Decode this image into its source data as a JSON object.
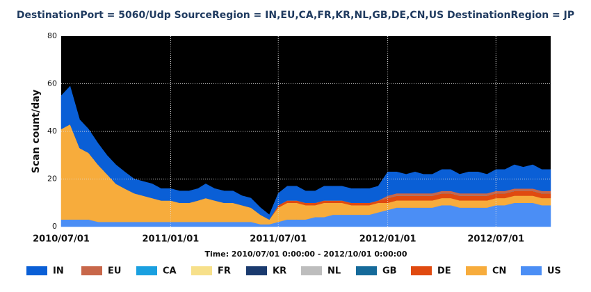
{
  "chart_data": {
    "type": "stacked-area",
    "title": "DestinationPort = 5060/Udp SourceRegion = IN,EU,CA,FR,KR,NL,GB,DE,CN,US DestinationRegion = JP",
    "y_label": "Scan count/day",
    "x_label": "Time: 2010/07/01 0:00:00 - 2012/10/01 0:00:00",
    "x": [
      "2010/07/01",
      "2010/07/16",
      "2010/08/01",
      "2010/08/16",
      "2010/09/01",
      "2010/09/16",
      "2010/10/01",
      "2010/10/16",
      "2010/11/01",
      "2010/11/16",
      "2010/12/01",
      "2010/12/16",
      "2011/01/01",
      "2011/01/16",
      "2011/02/01",
      "2011/02/16",
      "2011/03/01",
      "2011/03/16",
      "2011/04/01",
      "2011/04/16",
      "2011/05/01",
      "2011/05/16",
      "2011/06/01",
      "2011/06/16",
      "2011/07/01",
      "2011/07/16",
      "2011/08/01",
      "2011/08/16",
      "2011/09/01",
      "2011/09/16",
      "2011/10/01",
      "2011/10/16",
      "2011/11/01",
      "2011/11/16",
      "2011/12/01",
      "2011/12/16",
      "2012/01/01",
      "2012/01/16",
      "2012/02/01",
      "2012/02/16",
      "2012/03/01",
      "2012/03/16",
      "2012/04/01",
      "2012/04/16",
      "2012/05/01",
      "2012/05/16",
      "2012/06/01",
      "2012/06/16",
      "2012/07/01",
      "2012/07/16",
      "2012/08/01",
      "2012/08/16",
      "2012/09/01",
      "2012/09/16",
      "2012/10/01"
    ],
    "series": [
      {
        "name": "IN",
        "color": "#0a5fd6",
        "values": [
          14,
          16,
          12,
          10,
          9,
          8,
          8,
          7,
          6,
          6,
          6,
          5,
          5,
          5,
          5,
          5,
          6,
          5,
          5,
          5,
          4,
          4,
          3,
          2,
          5,
          6,
          6,
          5,
          5,
          6,
          6,
          6,
          6,
          6,
          6,
          6,
          10,
          9,
          8,
          9,
          8,
          8,
          9,
          9,
          8,
          9,
          9,
          8,
          9,
          9,
          10,
          9,
          10,
          9,
          9
        ]
      },
      {
        "name": "EU",
        "color": "#c8674a",
        "values": [
          0,
          0,
          0,
          0,
          0,
          0,
          0,
          0,
          0,
          0,
          0,
          0,
          0,
          0,
          0,
          0,
          0,
          0,
          0,
          0,
          0,
          0,
          0,
          0,
          0,
          0,
          0,
          0,
          0,
          0,
          0,
          0,
          0,
          0,
          0,
          0,
          1,
          1,
          1,
          1,
          1,
          1,
          1,
          1,
          1,
          1,
          1,
          1,
          1,
          1,
          1,
          1,
          1,
          1,
          1
        ]
      },
      {
        "name": "CA",
        "color": "#1aa0e0",
        "values": [
          0,
          0,
          0,
          0,
          0,
          0,
          0,
          0,
          0,
          0,
          0,
          0,
          0,
          0,
          0,
          0,
          0,
          0,
          0,
          0,
          0,
          0,
          0,
          0,
          0,
          0,
          0,
          0,
          0,
          0,
          0,
          0,
          0,
          0,
          0,
          0,
          0,
          0,
          0,
          0,
          0,
          0,
          0,
          0,
          0,
          0,
          0,
          0,
          0,
          0,
          0,
          0,
          0,
          0,
          0
        ]
      },
      {
        "name": "FR",
        "color": "#f7e08a",
        "values": [
          0,
          0,
          0,
          0,
          0,
          0,
          0,
          0,
          0,
          0,
          0,
          0,
          0,
          0,
          0,
          0,
          0,
          0,
          0,
          0,
          0,
          0,
          0,
          0,
          0,
          0,
          0,
          0,
          0,
          0,
          0,
          0,
          0,
          0,
          0,
          0,
          0,
          0,
          0,
          0,
          0,
          0,
          0,
          0,
          0,
          0,
          0,
          0,
          0,
          0,
          0,
          0,
          0,
          0,
          0
        ]
      },
      {
        "name": "KR",
        "color": "#1a3a6e",
        "values": [
          0,
          0,
          0,
          0,
          0,
          0,
          0,
          0,
          0,
          0,
          0,
          0,
          0,
          0,
          0,
          0,
          0,
          0,
          0,
          0,
          0,
          0,
          0,
          0,
          0,
          0,
          0,
          0,
          0,
          0,
          0,
          0,
          0,
          0,
          0,
          0,
          0,
          0,
          0,
          0,
          0,
          0,
          0,
          0,
          0,
          0,
          0,
          0,
          0,
          0,
          0,
          0,
          0,
          0,
          0
        ]
      },
      {
        "name": "NL",
        "color": "#bdbdbd",
        "values": [
          0,
          0,
          0,
          0,
          0,
          0,
          0,
          0,
          0,
          0,
          0,
          0,
          0,
          0,
          0,
          0,
          0,
          0,
          0,
          0,
          0,
          0,
          0,
          0,
          0,
          0,
          0,
          0,
          0,
          0,
          0,
          0,
          0,
          0,
          0,
          0,
          0,
          0,
          0,
          0,
          0,
          0,
          0,
          0,
          0,
          0,
          0,
          0,
          0,
          0,
          0,
          0,
          0,
          0,
          0
        ]
      },
      {
        "name": "GB",
        "color": "#156a9a",
        "values": [
          0,
          0,
          0,
          0,
          0,
          0,
          0,
          0,
          0,
          0,
          0,
          0,
          0,
          0,
          0,
          0,
          0,
          0,
          0,
          0,
          0,
          0,
          0,
          0,
          0,
          0,
          0,
          0,
          0,
          0,
          0,
          0,
          0,
          0,
          0,
          0,
          0,
          0,
          0,
          0,
          0,
          0,
          0,
          0,
          0,
          0,
          0,
          0,
          0,
          0,
          0,
          0,
          0,
          0,
          0
        ]
      },
      {
        "name": "DE",
        "color": "#e04a10",
        "values": [
          0,
          0,
          0,
          0,
          0,
          0,
          0,
          0,
          0,
          0,
          0,
          0,
          0,
          0,
          0,
          0,
          0,
          0,
          0,
          0,
          0,
          0,
          0,
          0,
          1,
          1,
          1,
          1,
          1,
          1,
          1,
          1,
          1,
          1,
          1,
          1,
          2,
          2,
          2,
          2,
          2,
          2,
          2,
          2,
          2,
          2,
          2,
          2,
          2,
          2,
          2,
          2,
          2,
          2,
          2
        ]
      },
      {
        "name": "CN",
        "color": "#f7ac3c",
        "values": [
          38,
          40,
          30,
          28,
          24,
          20,
          16,
          14,
          12,
          11,
          10,
          9,
          9,
          8,
          8,
          9,
          10,
          9,
          8,
          8,
          7,
          6,
          4,
          2,
          6,
          7,
          7,
          6,
          5,
          6,
          5,
          5,
          4,
          4,
          4,
          4,
          3,
          3,
          3,
          3,
          3,
          3,
          3,
          3,
          3,
          3,
          3,
          3,
          3,
          3,
          3,
          3,
          3,
          3,
          3
        ]
      },
      {
        "name": "US",
        "color": "#4b8ef5",
        "values": [
          3,
          3,
          3,
          3,
          2,
          2,
          2,
          2,
          2,
          2,
          2,
          2,
          2,
          2,
          2,
          2,
          2,
          2,
          2,
          2,
          2,
          2,
          1,
          1,
          2,
          3,
          3,
          3,
          4,
          4,
          5,
          5,
          5,
          5,
          5,
          6,
          7,
          8,
          8,
          8,
          8,
          8,
          9,
          9,
          8,
          8,
          8,
          8,
          9,
          9,
          10,
          10,
          10,
          9,
          9
        ]
      }
    ],
    "xlim": [
      "2010/07/01",
      "2012/10/01"
    ],
    "xticks": [
      "2010/07/01",
      "2011/01/01",
      "2011/07/01",
      "2012/01/01",
      "2012/07/01"
    ],
    "ylim": [
      0,
      80
    ],
    "yticks": [
      0,
      20,
      40,
      60,
      80
    ],
    "grid": true
  }
}
